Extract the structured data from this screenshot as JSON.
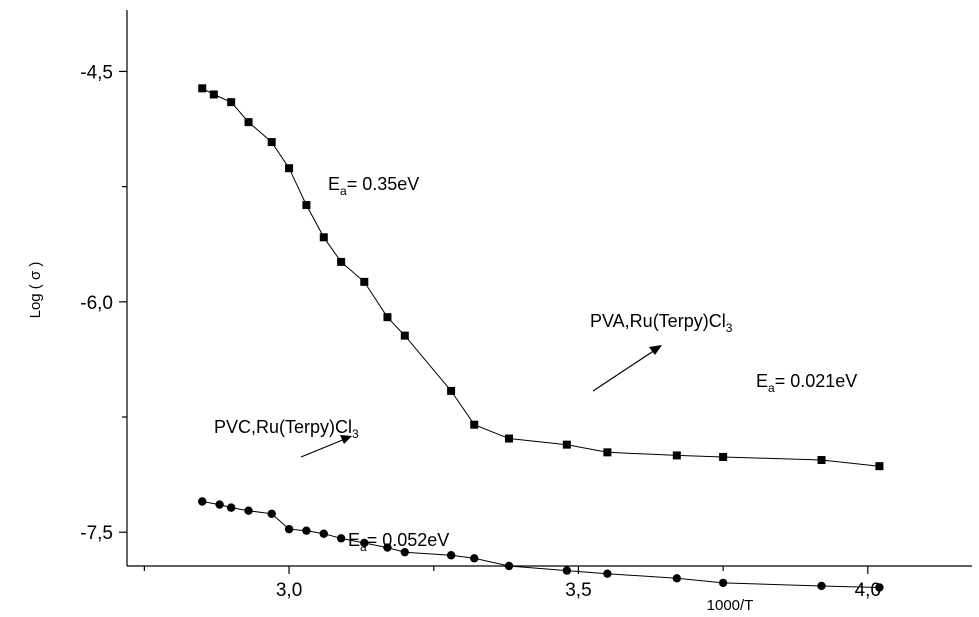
{
  "chart_data": {
    "type": "line",
    "xlabel": "1000/T",
    "ylabel": "Log ( σ )",
    "xlim": [
      2.72,
      4.18
    ],
    "ylim": [
      -7.72,
      -4.1
    ],
    "x_ticks": [
      3.0,
      3.5,
      4.0
    ],
    "x_tick_labels": [
      "3,0",
      "3,5",
      "4,0"
    ],
    "x_minor_ticks": [
      2.75,
      3.25,
      3.75,
      4.25
    ],
    "y_ticks": [
      -4.5,
      -6.0,
      -7.5
    ],
    "y_tick_labels": [
      "-4,5",
      "-6,0",
      "-7,5"
    ],
    "y_minor_ticks": [
      -5.25,
      -6.75
    ],
    "series": [
      {
        "marker": "square",
        "x": [
          2.85,
          2.87,
          2.9,
          2.93,
          2.97,
          3.0,
          3.03,
          3.06,
          3.09,
          3.13,
          3.17,
          3.2,
          3.28,
          3.32,
          3.38,
          3.48,
          3.55,
          3.67,
          3.75,
          3.92,
          4.02
        ],
        "y": [
          -4.61,
          -4.65,
          -4.7,
          -4.83,
          -4.96,
          -5.13,
          -5.37,
          -5.58,
          -5.74,
          -5.87,
          -6.1,
          -6.22,
          -6.58,
          -6.8,
          -6.89,
          -6.93,
          -6.98,
          -7.0,
          -7.01,
          -7.03,
          -7.07
        ]
      },
      {
        "marker": "circle",
        "x": [
          2.85,
          2.88,
          2.9,
          2.93,
          2.97,
          3.0,
          3.03,
          3.06,
          3.09,
          3.13,
          3.17,
          3.2,
          3.28,
          3.32,
          3.38,
          3.48,
          3.55,
          3.67,
          3.75,
          3.92,
          4.02
        ],
        "y": [
          -7.3,
          -7.32,
          -7.34,
          -7.36,
          -7.38,
          -7.48,
          -7.49,
          -7.51,
          -7.54,
          -7.57,
          -7.6,
          -7.63,
          -7.65,
          -7.67,
          -7.72,
          -7.75,
          -7.77,
          -7.8,
          -7.83,
          -7.85,
          -7.86
        ]
      }
    ],
    "annotations": [
      {
        "id": "ea1",
        "main": "E",
        "sub": "a",
        "rest": "= 0.35eV"
      },
      {
        "id": "ea2",
        "main": "E",
        "sub": "a",
        "rest": "= 0.021eV"
      },
      {
        "id": "ea3",
        "main": "E",
        "sub": "a",
        "rest": "= 0.052eV"
      },
      {
        "id": "pva",
        "main": "PVA,Ru(Terpy)Cl",
        "sub": "3",
        "rest": ""
      },
      {
        "id": "pvc",
        "main": "PVC,Ru(Terpy)Cl",
        "sub": "3",
        "rest": ""
      }
    ],
    "grid": false,
    "legend": "none"
  }
}
